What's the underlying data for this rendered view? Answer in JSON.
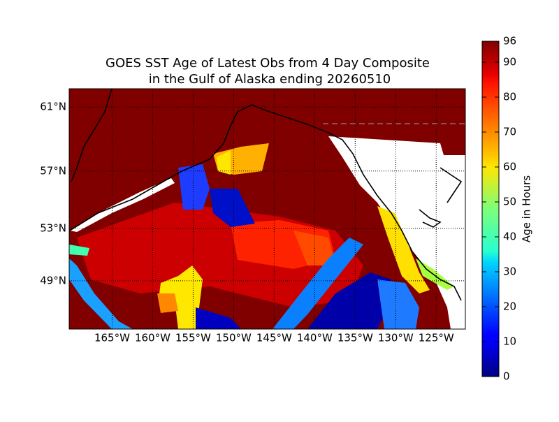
{
  "title_lines": [
    "GOES SST Age of Latest Obs from 4 Day Composite",
    "in the Gulf of Alaska ending 20260510"
  ],
  "map": {
    "projection": "mercator",
    "lonlim": [
      -170.3,
      -121.4
    ],
    "latlim": [
      45,
      62.06
    ],
    "lon_ticks": [
      {
        "value": -165,
        "label": "165°W"
      },
      {
        "value": -160,
        "label": "160°W"
      },
      {
        "value": -155,
        "label": "155°W"
      },
      {
        "value": -150,
        "label": "150°W"
      },
      {
        "value": -145,
        "label": "145°W"
      },
      {
        "value": -140,
        "label": "140°W"
      },
      {
        "value": -135,
        "label": "135°W"
      },
      {
        "value": -130,
        "label": "130°W"
      },
      {
        "value": -125,
        "label": "125°W"
      }
    ],
    "lat_ticks": [
      {
        "value": 49,
        "label": "49°N"
      },
      {
        "value": 53,
        "label": "53°N"
      },
      {
        "value": 57,
        "label": "57°N"
      },
      {
        "value": 61,
        "label": "61°N"
      }
    ],
    "grid": true
  },
  "colorbar": {
    "label": "Age in Hours",
    "lim": [
      0,
      96
    ],
    "ticks": [
      0,
      10,
      20,
      30,
      40,
      50,
      60,
      70,
      80,
      90,
      96
    ],
    "colormap": "jet"
  }
}
